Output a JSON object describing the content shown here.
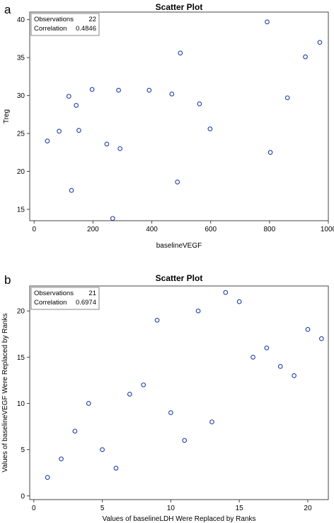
{
  "chart_data": [
    {
      "panel": "a",
      "type": "scatter",
      "title": "Scatter Plot",
      "xlabel": "baselineVEGF",
      "ylabel": "Treg",
      "xlim": [
        -15,
        1000
      ],
      "ylim": [
        13.5,
        41
      ],
      "xticks": [
        0,
        200,
        400,
        600,
        800,
        1000
      ],
      "yticks": [
        15,
        20,
        25,
        30,
        35,
        40
      ],
      "stats": [
        {
          "label": "Observations",
          "value": "22"
        },
        {
          "label": "Correlation",
          "value": "0.4846"
        }
      ],
      "marker_color": "#1f3fa8",
      "points": [
        {
          "x": 45,
          "y": 24.0
        },
        {
          "x": 85,
          "y": 25.3
        },
        {
          "x": 118,
          "y": 29.9
        },
        {
          "x": 127,
          "y": 17.5
        },
        {
          "x": 143,
          "y": 28.7
        },
        {
          "x": 152,
          "y": 25.4
        },
        {
          "x": 197,
          "y": 30.8
        },
        {
          "x": 247,
          "y": 23.6
        },
        {
          "x": 267,
          "y": 13.8
        },
        {
          "x": 287,
          "y": 30.7
        },
        {
          "x": 292,
          "y": 23.0
        },
        {
          "x": 391,
          "y": 30.7
        },
        {
          "x": 468,
          "y": 30.2
        },
        {
          "x": 487,
          "y": 18.6
        },
        {
          "x": 497,
          "y": 35.6
        },
        {
          "x": 562,
          "y": 28.9
        },
        {
          "x": 598,
          "y": 25.6
        },
        {
          "x": 792,
          "y": 39.7
        },
        {
          "x": 803,
          "y": 22.5
        },
        {
          "x": 861,
          "y": 29.7
        },
        {
          "x": 922,
          "y": 35.1
        },
        {
          "x": 971,
          "y": 37.0
        }
      ]
    },
    {
      "panel": "b",
      "type": "scatter",
      "title": "Scatter Plot",
      "xlabel": "Values of baselineLDH Were Replaced by Ranks",
      "ylabel": "Values of baselineVEGF Were Replaced by Ranks",
      "xlim": [
        -0.3,
        21.5
      ],
      "ylim": [
        -0.4,
        22.7
      ],
      "xticks": [
        0,
        5,
        10,
        15,
        20
      ],
      "yticks": [
        0,
        5,
        10,
        15,
        20
      ],
      "stats": [
        {
          "label": "Observations",
          "value": "21"
        },
        {
          "label": "Correlation",
          "value": "0.6974"
        }
      ],
      "marker_color": "#1f3fa8",
      "points": [
        {
          "x": 1,
          "y": 2
        },
        {
          "x": 2,
          "y": 4
        },
        {
          "x": 3,
          "y": 7
        },
        {
          "x": 4,
          "y": 10
        },
        {
          "x": 5,
          "y": 5
        },
        {
          "x": 6,
          "y": 3
        },
        {
          "x": 7,
          "y": 11
        },
        {
          "x": 8,
          "y": 12
        },
        {
          "x": 9,
          "y": 19
        },
        {
          "x": 10,
          "y": 9
        },
        {
          "x": 11,
          "y": 6
        },
        {
          "x": 12,
          "y": 20
        },
        {
          "x": 13,
          "y": 8
        },
        {
          "x": 14,
          "y": 22
        },
        {
          "x": 15,
          "y": 21
        },
        {
          "x": 16,
          "y": 15
        },
        {
          "x": 17,
          "y": 16
        },
        {
          "x": 18,
          "y": 14
        },
        {
          "x": 19,
          "y": 13
        },
        {
          "x": 20,
          "y": 18
        },
        {
          "x": 21,
          "y": 17
        }
      ]
    }
  ]
}
